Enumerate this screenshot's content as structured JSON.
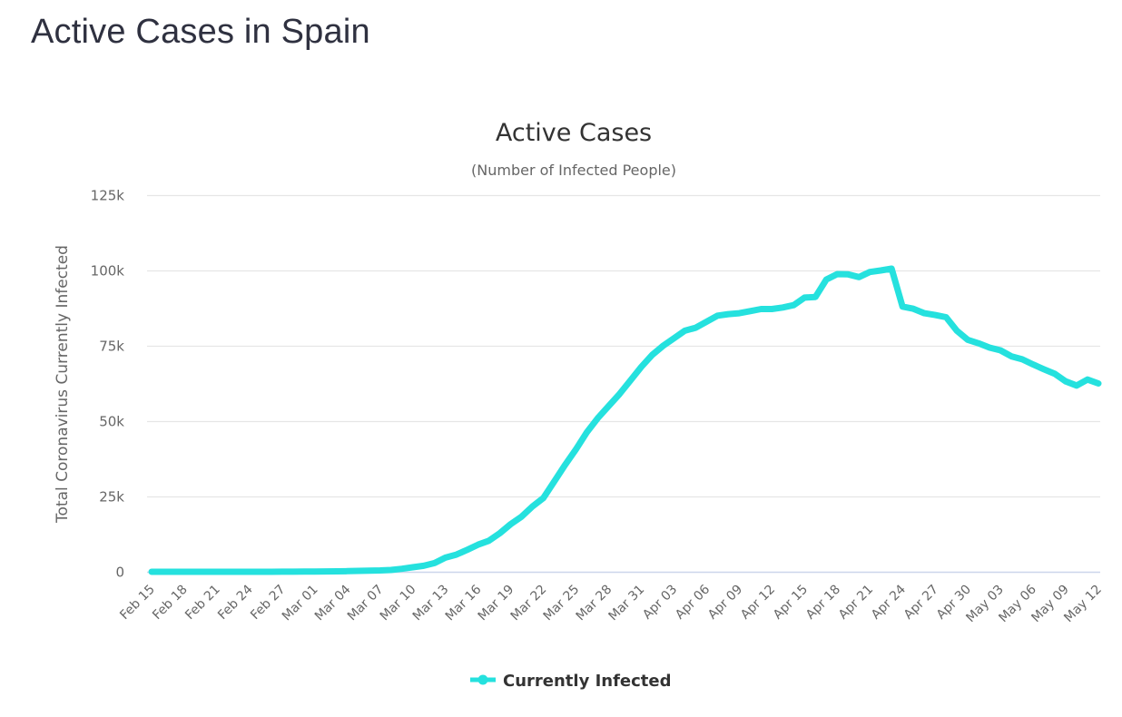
{
  "page": {
    "title": "Active Cases in Spain"
  },
  "chart_data": {
    "type": "line",
    "title": "Active Cases",
    "subtitle": "(Number of Infected People)",
    "xlabel": "",
    "ylabel": "Total Coronavirus Currently Infected",
    "ylim": [
      0,
      125000
    ],
    "y_ticks": [
      0,
      25000,
      50000,
      75000,
      100000,
      125000
    ],
    "y_tick_labels": [
      "0",
      "25k",
      "50k",
      "75k",
      "100k",
      "125k"
    ],
    "x_tick_labels": [
      "Feb 15",
      "Feb 18",
      "Feb 21",
      "Feb 24",
      "Feb 27",
      "Mar 01",
      "Mar 04",
      "Mar 07",
      "Mar 10",
      "Mar 13",
      "Mar 16",
      "Mar 19",
      "Mar 22",
      "Mar 25",
      "Mar 28",
      "Mar 31",
      "Apr 03",
      "Apr 06",
      "Apr 09",
      "Apr 12",
      "Apr 15",
      "Apr 18",
      "Apr 21",
      "Apr 24",
      "Apr 27",
      "Apr 30",
      "May 03",
      "May 06",
      "May 09",
      "May 12"
    ],
    "x_tick_step_days": 3,
    "grid": true,
    "legend_position": "bottom-center",
    "series": [
      {
        "name": "Currently Infected",
        "color": "#25e1de",
        "start_date": "Feb 15",
        "values": [
          2,
          2,
          2,
          2,
          2,
          2,
          2,
          2,
          2,
          2,
          2,
          13,
          30,
          40,
          56,
          72,
          110,
          150,
          220,
          300,
          390,
          450,
          600,
          1000,
          1500,
          2000,
          2900,
          4700,
          5700,
          7300,
          9000,
          10300,
          12800,
          15800,
          18300,
          21700,
          24500,
          30000,
          35500,
          40700,
          46300,
          51000,
          55000,
          59000,
          63500,
          68000,
          72000,
          75000,
          77500,
          80000,
          81000,
          83000,
          85000,
          85500,
          85800,
          86500,
          87200,
          87200,
          87700,
          88500,
          91000,
          91200,
          97000,
          98800,
          98700,
          97800,
          99500,
          100000,
          100600,
          88000,
          87300,
          85800,
          85200,
          84500,
          80000,
          77000,
          75800,
          74400,
          73500,
          71500,
          70500,
          68800,
          67200,
          65700,
          63200,
          61800,
          63800,
          62500
        ]
      }
    ]
  }
}
